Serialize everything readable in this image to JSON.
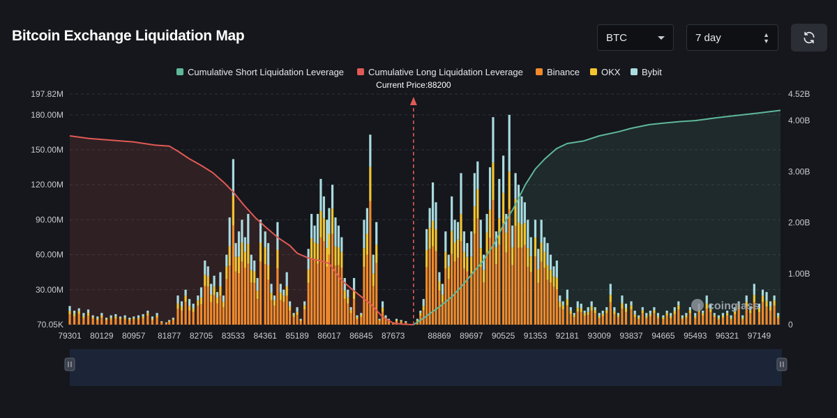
{
  "title": "Bitcoin Exchange Liquidation Map",
  "controls": {
    "coin": "BTC",
    "range": "7 day"
  },
  "watermark": "coinglass",
  "colors": {
    "short_cum": "#5fb89a",
    "long_cum": "#e05a55",
    "binance": "#f08a2c",
    "okx": "#f4c430",
    "bybit": "#a9dbe0",
    "background": "#15171c"
  },
  "chart_data": {
    "type": "bar",
    "title": "Bitcoin Exchange Liquidation Map",
    "current_price_label": "Current Price:88200",
    "current_price": 88200,
    "x_range": [
      79301,
      97700
    ],
    "x_ticks": [
      "79301",
      "80129",
      "80957",
      "81877",
      "82705",
      "83533",
      "84361",
      "85189",
      "86017",
      "86845",
      "87673",
      "88869",
      "89697",
      "90525",
      "91353",
      "92181",
      "93009",
      "93837",
      "94665",
      "95493",
      "96321",
      "97149"
    ],
    "y_left_ticks": [
      "70.05K",
      "30.00M",
      "60.00M",
      "90.00M",
      "120.00M",
      "150.00M",
      "180.00M",
      "197.82M"
    ],
    "y_right_ticks": [
      "0",
      "1.00B",
      "2.00B",
      "3.00B",
      "4.00B",
      "4.52B"
    ],
    "y_left_range": [
      0,
      197.82
    ],
    "y_right_range": [
      0,
      4.52
    ],
    "grid": true,
    "legend_position": "top-center",
    "legend": [
      {
        "name": "Cumulative Short Liquidation Leverage",
        "color": "#5fb89a"
      },
      {
        "name": "Cumulative Long Liquidation Leverage",
        "color": "#e05a55"
      },
      {
        "name": "Binance",
        "color": "#f08a2c"
      },
      {
        "name": "OKX",
        "color": "#f4c430"
      },
      {
        "name": "Bybit",
        "color": "#a9dbe0"
      }
    ],
    "bars": [
      [
        79301,
        16
      ],
      [
        79420,
        12
      ],
      [
        79540,
        14
      ],
      [
        79660,
        10
      ],
      [
        79780,
        13
      ],
      [
        79900,
        8
      ],
      [
        80020,
        7
      ],
      [
        80129,
        10
      ],
      [
        80250,
        6
      ],
      [
        80370,
        8
      ],
      [
        80490,
        9
      ],
      [
        80610,
        7
      ],
      [
        80730,
        8
      ],
      [
        80850,
        6
      ],
      [
        80957,
        7
      ],
      [
        81080,
        8
      ],
      [
        81200,
        9
      ],
      [
        81320,
        12
      ],
      [
        81440,
        7
      ],
      [
        81560,
        10
      ],
      [
        81680,
        3
      ],
      [
        81800,
        2
      ],
      [
        81877,
        4
      ],
      [
        81980,
        6
      ],
      [
        82100,
        25
      ],
      [
        82200,
        20
      ],
      [
        82300,
        30
      ],
      [
        82400,
        22
      ],
      [
        82500,
        18
      ],
      [
        82620,
        25
      ],
      [
        82705,
        32
      ],
      [
        82800,
        55
      ],
      [
        82880,
        50
      ],
      [
        82960,
        35
      ],
      [
        83040,
        42
      ],
      [
        83120,
        28
      ],
      [
        83200,
        45
      ],
      [
        83280,
        25
      ],
      [
        83360,
        60
      ],
      [
        83440,
        92
      ],
      [
        83533,
        142
      ],
      [
        83600,
        70
      ],
      [
        83680,
        80
      ],
      [
        83760,
        90
      ],
      [
        83840,
        75
      ],
      [
        83920,
        95
      ],
      [
        84000,
        60
      ],
      [
        84080,
        55
      ],
      [
        84160,
        40
      ],
      [
        84240,
        90
      ],
      [
        84361,
        80
      ],
      [
        84440,
        70
      ],
      [
        84520,
        35
      ],
      [
        84600,
        25
      ],
      [
        84680,
        88
      ],
      [
        84760,
        35
      ],
      [
        84840,
        30
      ],
      [
        84920,
        45
      ],
      [
        85000,
        20
      ],
      [
        85100,
        10
      ],
      [
        85189,
        15
      ],
      [
        85280,
        5
      ],
      [
        85380,
        20
      ],
      [
        85480,
        65
      ],
      [
        85560,
        95
      ],
      [
        85640,
        85
      ],
      [
        85720,
        95
      ],
      [
        85800,
        125
      ],
      [
        85880,
        110
      ],
      [
        85960,
        90
      ],
      [
        86017,
        100
      ],
      [
        86100,
        120
      ],
      [
        86180,
        92
      ],
      [
        86260,
        85
      ],
      [
        86340,
        75
      ],
      [
        86420,
        40
      ],
      [
        86500,
        30
      ],
      [
        86580,
        15
      ],
      [
        86660,
        40
      ],
      [
        86740,
        8
      ],
      [
        86845,
        10
      ],
      [
        86920,
        90
      ],
      [
        87000,
        100
      ],
      [
        87080,
        163
      ],
      [
        87160,
        60
      ],
      [
        87240,
        88
      ],
      [
        87320,
        5
      ],
      [
        87400,
        20
      ],
      [
        87480,
        8
      ],
      [
        87560,
        5
      ],
      [
        87673,
        2
      ],
      [
        87760,
        5
      ],
      [
        87880,
        4
      ],
      [
        88000,
        3
      ],
      [
        88300,
        5
      ],
      [
        88380,
        12
      ],
      [
        88460,
        22
      ],
      [
        88540,
        82
      ],
      [
        88620,
        100
      ],
      [
        88700,
        122
      ],
      [
        88780,
        105
      ],
      [
        88869,
        45
      ],
      [
        88950,
        35
      ],
      [
        89030,
        80
      ],
      [
        89110,
        60
      ],
      [
        89190,
        110
      ],
      [
        89270,
        90
      ],
      [
        89350,
        88
      ],
      [
        89430,
        130
      ],
      [
        89510,
        80
      ],
      [
        89590,
        70
      ],
      [
        89697,
        80
      ],
      [
        89780,
        130
      ],
      [
        89860,
        140
      ],
      [
        89940,
        90
      ],
      [
        90020,
        60
      ],
      [
        90100,
        95
      ],
      [
        90180,
        135
      ],
      [
        90260,
        178
      ],
      [
        90340,
        80
      ],
      [
        90420,
        125
      ],
      [
        90525,
        145
      ],
      [
        90600,
        95
      ],
      [
        90680,
        180
      ],
      [
        90760,
        85
      ],
      [
        90840,
        130
      ],
      [
        90920,
        120
      ],
      [
        91000,
        110
      ],
      [
        91080,
        105
      ],
      [
        91160,
        90
      ],
      [
        91240,
        75
      ],
      [
        91353,
        90
      ],
      [
        91430,
        65
      ],
      [
        91510,
        90
      ],
      [
        91590,
        75
      ],
      [
        91670,
        70
      ],
      [
        91750,
        60
      ],
      [
        91830,
        50
      ],
      [
        91910,
        55
      ],
      [
        91990,
        25
      ],
      [
        92070,
        20
      ],
      [
        92181,
        30
      ],
      [
        92270,
        15
      ],
      [
        92360,
        10
      ],
      [
        92450,
        20
      ],
      [
        92540,
        18
      ],
      [
        92630,
        12
      ],
      [
        92720,
        15
      ],
      [
        92810,
        20
      ],
      [
        92900,
        15
      ],
      [
        93009,
        10
      ],
      [
        93100,
        12
      ],
      [
        93200,
        15
      ],
      [
        93300,
        35
      ],
      [
        93400,
        15
      ],
      [
        93500,
        10
      ],
      [
        93600,
        25
      ],
      [
        93700,
        18
      ],
      [
        93837,
        20
      ],
      [
        93930,
        12
      ],
      [
        94030,
        8
      ],
      [
        94130,
        15
      ],
      [
        94230,
        10
      ],
      [
        94330,
        12
      ],
      [
        94430,
        15
      ],
      [
        94530,
        10
      ],
      [
        94665,
        8
      ],
      [
        94760,
        12
      ],
      [
        94860,
        10
      ],
      [
        94960,
        15
      ],
      [
        95060,
        20
      ],
      [
        95160,
        8
      ],
      [
        95260,
        10
      ],
      [
        95360,
        15
      ],
      [
        95493,
        10
      ],
      [
        95590,
        18
      ],
      [
        95690,
        12
      ],
      [
        95790,
        25
      ],
      [
        95890,
        18
      ],
      [
        95990,
        10
      ],
      [
        96100,
        8
      ],
      [
        96210,
        10
      ],
      [
        96321,
        12
      ],
      [
        96420,
        8
      ],
      [
        96520,
        15
      ],
      [
        96620,
        20
      ],
      [
        96720,
        8
      ],
      [
        96820,
        25
      ],
      [
        96920,
        15
      ],
      [
        97020,
        35
      ],
      [
        97149,
        18
      ],
      [
        97240,
        30
      ],
      [
        97340,
        28
      ],
      [
        97440,
        20
      ],
      [
        97540,
        25
      ],
      [
        97640,
        10
      ]
    ],
    "long_cumulative": [
      [
        79301,
        3.7
      ],
      [
        79800,
        3.65
      ],
      [
        80300,
        3.62
      ],
      [
        80957,
        3.58
      ],
      [
        81500,
        3.52
      ],
      [
        81877,
        3.5
      ],
      [
        82100,
        3.4
      ],
      [
        82400,
        3.25
      ],
      [
        82705,
        3.12
      ],
      [
        83000,
        2.98
      ],
      [
        83300,
        2.78
      ],
      [
        83533,
        2.6
      ],
      [
        83800,
        2.35
      ],
      [
        84100,
        2.1
      ],
      [
        84361,
        1.92
      ],
      [
        84700,
        1.7
      ],
      [
        85000,
        1.55
      ],
      [
        85189,
        1.4
      ],
      [
        85500,
        1.3
      ],
      [
        85800,
        1.25
      ],
      [
        86017,
        1.2
      ],
      [
        86300,
        0.9
      ],
      [
        86600,
        0.7
      ],
      [
        86845,
        0.55
      ],
      [
        87100,
        0.4
      ],
      [
        87400,
        0.15
      ],
      [
        87673,
        0.03
      ],
      [
        87900,
        0.01
      ],
      [
        88200,
        0
      ]
    ],
    "short_cumulative": [
      [
        88200,
        0
      ],
      [
        88500,
        0.15
      ],
      [
        88869,
        0.35
      ],
      [
        89200,
        0.55
      ],
      [
        89500,
        0.8
      ],
      [
        89697,
        0.98
      ],
      [
        90000,
        1.25
      ],
      [
        90300,
        1.6
      ],
      [
        90525,
        1.95
      ],
      [
        90800,
        2.3
      ],
      [
        91100,
        2.75
      ],
      [
        91353,
        3.05
      ],
      [
        91600,
        3.25
      ],
      [
        91900,
        3.45
      ],
      [
        92181,
        3.55
      ],
      [
        92600,
        3.6
      ],
      [
        93009,
        3.7
      ],
      [
        93500,
        3.78
      ],
      [
        93837,
        3.85
      ],
      [
        94300,
        3.92
      ],
      [
        94665,
        3.95
      ],
      [
        95100,
        3.98
      ],
      [
        95493,
        4.0
      ],
      [
        96000,
        4.05
      ],
      [
        96321,
        4.08
      ],
      [
        96800,
        4.12
      ],
      [
        97149,
        4.15
      ],
      [
        97700,
        4.2
      ]
    ]
  }
}
